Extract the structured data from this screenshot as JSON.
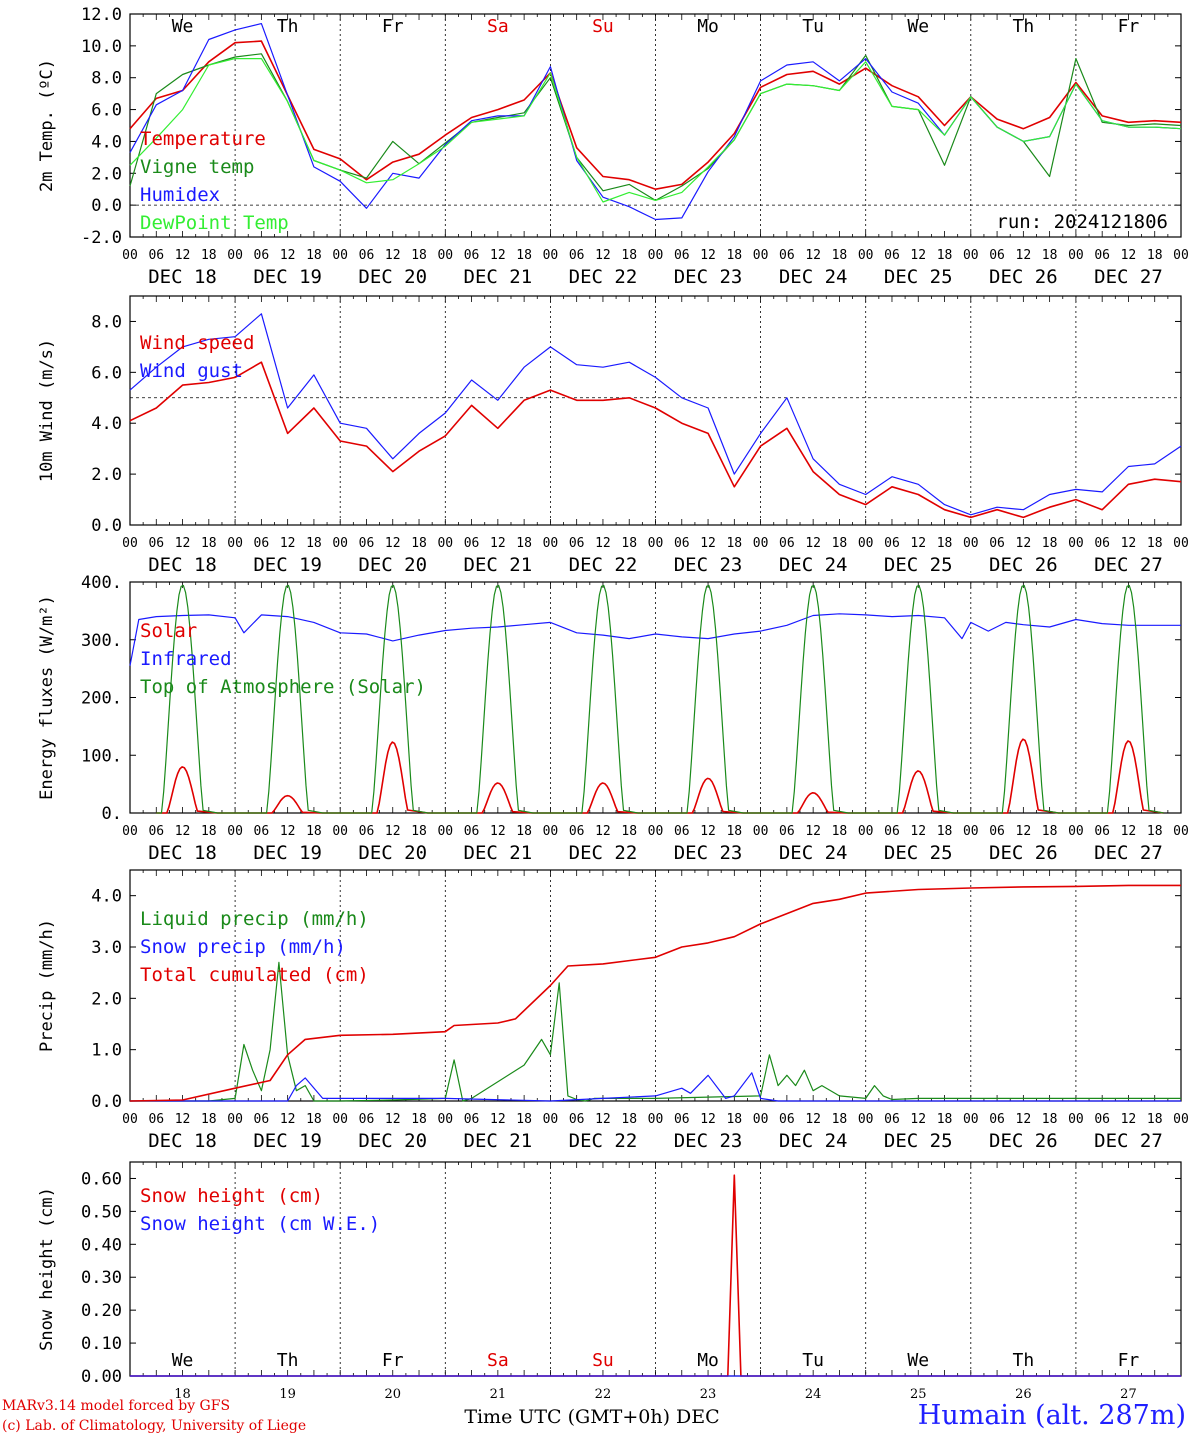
{
  "run_label": "run: 2024121806",
  "footer": {
    "model": "MARv3.14 model forced by GFS",
    "credit": "(c) Lab. of Climatology, University of Liege",
    "station": "Humain (alt. 287m)",
    "xlabel": "Time UTC (GMT+0h) DEC"
  },
  "colors": {
    "red": "#e00000",
    "green": "#1a8a1a",
    "blue": "#1a1aff",
    "lightgreen": "#33ee33",
    "weekend": "#e00000"
  },
  "x_axis": {
    "days": [
      "DEC 18",
      "DEC 19",
      "DEC 20",
      "DEC 21",
      "DEC 22",
      "DEC 23",
      "DEC 24",
      "DEC 25",
      "DEC 26",
      "DEC 27"
    ],
    "day_numbers": [
      "18",
      "19",
      "20",
      "21",
      "22",
      "23",
      "24",
      "25",
      "26",
      "27"
    ],
    "weekdays": [
      "We",
      "Th",
      "Fr",
      "Sa",
      "Su",
      "Mo",
      "Tu",
      "We",
      "Th",
      "Fr"
    ],
    "weekend_flags": [
      false,
      false,
      false,
      true,
      true,
      false,
      false,
      false,
      false,
      false
    ],
    "hour_ticks": [
      "00",
      "06",
      "12",
      "18"
    ],
    "range_hours": [
      0,
      240
    ]
  },
  "chart_data": [
    {
      "type": "line",
      "id": "temp",
      "ylabel": "2m Temp. (ºC)",
      "ylim": [
        -2,
        12
      ],
      "yticks": [
        "-2.0",
        "0.0",
        "2.0",
        "4.0",
        "6.0",
        "8.0",
        "10.0",
        "12.0"
      ],
      "ref_line": 0,
      "series": [
        {
          "name": "Temperature",
          "color": "red",
          "x": [
            0,
            6,
            12,
            18,
            24,
            30,
            36,
            42,
            48,
            54,
            60,
            66,
            72,
            78,
            84,
            90,
            96,
            102,
            108,
            114,
            120,
            126,
            132,
            138,
            144,
            150,
            156,
            162,
            168,
            174,
            180,
            186,
            192,
            198,
            204,
            210,
            216,
            222,
            228,
            234,
            240
          ],
          "y": [
            4.8,
            6.7,
            7.2,
            9.0,
            10.2,
            10.3,
            6.9,
            3.5,
            2.9,
            1.6,
            2.7,
            3.2,
            4.4,
            5.5,
            6.0,
            6.6,
            8.3,
            3.6,
            1.8,
            1.6,
            1.0,
            1.3,
            2.7,
            4.5,
            7.4,
            8.2,
            8.4,
            7.6,
            8.6,
            7.5,
            6.8,
            5.0,
            6.8,
            5.4,
            4.8,
            5.5,
            7.7,
            5.6,
            5.2,
            5.3,
            5.2
          ]
        },
        {
          "name": "Vigne temp",
          "color": "green",
          "x": [
            0,
            6,
            12,
            18,
            24,
            30,
            36,
            42,
            48,
            54,
            60,
            66,
            72,
            78,
            84,
            90,
            96,
            102,
            108,
            114,
            120,
            126,
            132,
            138,
            144,
            150,
            156,
            162,
            168,
            174,
            180,
            186,
            192,
            198,
            204,
            210,
            216,
            222,
            228,
            234,
            240
          ],
          "y": [
            1.2,
            7.0,
            8.2,
            8.8,
            9.3,
            9.5,
            6.5,
            2.8,
            2.2,
            1.7,
            4.0,
            2.6,
            3.9,
            5.2,
            5.5,
            5.8,
            8.0,
            3.0,
            0.9,
            1.3,
            0.3,
            1.2,
            2.3,
            4.1,
            7.0,
            7.6,
            7.5,
            7.2,
            9.4,
            6.2,
            6.0,
            2.5,
            6.8,
            4.9,
            4.0,
            1.8,
            9.2,
            5.2,
            5.0,
            5.1,
            5.0
          ]
        },
        {
          "name": "Humidex",
          "color": "blue",
          "x": [
            0,
            6,
            12,
            18,
            24,
            30,
            36,
            42,
            48,
            54,
            60,
            66,
            72,
            78,
            84,
            90,
            96,
            102,
            108,
            114,
            120,
            126,
            132,
            138,
            144,
            150,
            156,
            162,
            168,
            174,
            180,
            186,
            192,
            198,
            204,
            210,
            216,
            222,
            228,
            234,
            240
          ],
          "y": [
            3.3,
            6.3,
            7.2,
            10.4,
            11.0,
            11.4,
            6.9,
            2.4,
            1.5,
            -0.2,
            2.0,
            1.7,
            3.8,
            5.3,
            5.6,
            5.6,
            8.7,
            2.8,
            0.5,
            -0.1,
            -0.9,
            -0.8,
            2.1,
            4.3,
            7.8,
            8.8,
            9.0,
            7.8,
            9.2,
            7.1,
            6.4,
            4.4,
            6.8,
            4.9,
            4.0,
            4.3,
            7.6,
            5.3,
            4.9,
            4.9,
            4.8
          ]
        },
        {
          "name": "DewPoint Temp",
          "color": "lightgreen",
          "x": [
            0,
            6,
            12,
            18,
            24,
            30,
            36,
            42,
            48,
            54,
            60,
            66,
            72,
            78,
            84,
            90,
            96,
            102,
            108,
            114,
            120,
            126,
            132,
            138,
            144,
            150,
            156,
            162,
            168,
            174,
            180,
            186,
            192,
            198,
            204,
            210,
            216,
            222,
            228,
            234,
            240
          ],
          "y": [
            2.5,
            4.2,
            6.0,
            8.8,
            9.2,
            9.2,
            6.5,
            2.8,
            2.2,
            1.4,
            1.6,
            2.6,
            3.7,
            5.2,
            5.4,
            5.6,
            8.3,
            3.0,
            0.2,
            0.8,
            0.3,
            0.8,
            2.4,
            4.1,
            7.0,
            7.6,
            7.5,
            7.2,
            9.0,
            6.2,
            6.0,
            4.4,
            6.8,
            4.9,
            4.0,
            4.3,
            7.6,
            5.3,
            4.9,
            4.9,
            4.8
          ]
        }
      ]
    },
    {
      "type": "line",
      "id": "wind",
      "ylabel": "10m Wind (m/s)",
      "ylim": [
        0,
        9
      ],
      "yticks": [
        "0.0",
        "2.0",
        "4.0",
        "6.0",
        "8.0"
      ],
      "ref_line": 5,
      "series": [
        {
          "name": "Wind speed",
          "color": "red",
          "x": [
            0,
            6,
            12,
            18,
            24,
            30,
            36,
            42,
            48,
            54,
            60,
            66,
            72,
            78,
            84,
            90,
            96,
            102,
            108,
            114,
            120,
            126,
            132,
            138,
            144,
            150,
            156,
            162,
            168,
            174,
            180,
            186,
            192,
            198,
            204,
            210,
            216,
            222,
            228,
            234,
            240
          ],
          "y": [
            4.1,
            4.6,
            5.5,
            5.6,
            5.8,
            6.4,
            3.6,
            4.6,
            3.3,
            3.1,
            2.1,
            2.9,
            3.5,
            4.7,
            3.8,
            4.9,
            5.3,
            4.9,
            4.9,
            5.0,
            4.6,
            4.0,
            3.6,
            1.5,
            3.1,
            3.8,
            2.1,
            1.2,
            0.8,
            1.5,
            1.2,
            0.6,
            0.3,
            0.6,
            0.3,
            0.7,
            1.0,
            0.6,
            1.6,
            1.8,
            1.7
          ]
        },
        {
          "name": "Wind gust",
          "color": "blue",
          "x": [
            0,
            6,
            12,
            18,
            24,
            30,
            36,
            42,
            48,
            54,
            60,
            66,
            72,
            78,
            84,
            90,
            96,
            102,
            108,
            114,
            120,
            126,
            132,
            138,
            144,
            150,
            156,
            162,
            168,
            174,
            180,
            186,
            192,
            198,
            204,
            210,
            216,
            222,
            228,
            234,
            240
          ],
          "y": [
            5.3,
            6.2,
            7.0,
            7.3,
            7.4,
            8.3,
            4.6,
            5.9,
            4.0,
            3.8,
            2.6,
            3.6,
            4.4,
            5.7,
            4.9,
            6.2,
            7.0,
            6.3,
            6.2,
            6.4,
            5.8,
            5.0,
            4.6,
            2.0,
            3.6,
            5.0,
            2.6,
            1.6,
            1.2,
            1.9,
            1.6,
            0.8,
            0.4,
            0.7,
            0.6,
            1.2,
            1.4,
            1.3,
            2.3,
            2.4,
            3.1
          ]
        }
      ]
    },
    {
      "type": "line",
      "id": "energy",
      "ylabel": "Energy fluxes (W/m²)",
      "ylim": [
        0,
        400
      ],
      "yticks": [
        "0.",
        "100.",
        "200.",
        "300.",
        "400."
      ],
      "series": [
        {
          "name": "Solar",
          "color": "red",
          "peaks": [
            80,
            30,
            123,
            52,
            52,
            60,
            35,
            73,
            128,
            125
          ]
        },
        {
          "name": "Infrared",
          "color": "blue",
          "x": [
            0,
            2,
            6,
            12,
            18,
            24,
            26,
            30,
            36,
            42,
            48,
            54,
            60,
            66,
            72,
            78,
            84,
            90,
            96,
            102,
            108,
            114,
            120,
            126,
            132,
            138,
            144,
            150,
            156,
            162,
            168,
            174,
            180,
            186,
            190,
            192,
            196,
            200,
            204,
            210,
            216,
            222,
            228,
            234,
            240
          ],
          "y": [
            255,
            335,
            340,
            342,
            343,
            338,
            312,
            343,
            340,
            330,
            312,
            310,
            298,
            308,
            316,
            320,
            322,
            326,
            330,
            312,
            308,
            302,
            310,
            305,
            302,
            310,
            315,
            325,
            342,
            345,
            343,
            340,
            342,
            338,
            302,
            330,
            315,
            330,
            326,
            322,
            335,
            328,
            325,
            325,
            325
          ]
        },
        {
          "name": "Top of Atmosphere (Solar)",
          "color": "green",
          "peak": 395
        }
      ]
    },
    {
      "type": "line",
      "id": "precip",
      "ylabel": "Precip (mm/h)",
      "ylim": [
        0,
        4.5
      ],
      "yticks": [
        "0.0",
        "1.0",
        "2.0",
        "3.0",
        "4.0"
      ],
      "series": [
        {
          "name": "Liquid precip (mm/h)",
          "color": "green",
          "x": [
            0,
            18,
            24,
            26,
            28,
            30,
            32,
            34,
            36,
            38,
            40,
            42,
            48,
            60,
            72,
            74,
            76,
            78,
            90,
            94,
            96,
            98,
            100,
            102,
            104,
            106,
            120,
            144,
            146,
            148,
            150,
            152,
            154,
            156,
            158,
            162,
            168,
            170,
            172,
            174,
            180,
            240
          ],
          "y": [
            0,
            0,
            0.05,
            1.1,
            0.6,
            0.2,
            1.0,
            2.7,
            0.9,
            0.2,
            0.3,
            0,
            0,
            0.02,
            0.05,
            0.8,
            0.0,
            0.05,
            0.7,
            1.2,
            0.9,
            2.3,
            0.1,
            0.03,
            0,
            0.05,
            0.05,
            0.1,
            0.9,
            0.3,
            0.5,
            0.3,
            0.6,
            0.2,
            0.3,
            0.1,
            0.05,
            0.3,
            0.1,
            0.03,
            0.05,
            0.05
          ]
        },
        {
          "name": "Snow precip (mm/h)",
          "color": "blue",
          "x": [
            0,
            36,
            38,
            40,
            44,
            60,
            72,
            96,
            108,
            120,
            126,
            128,
            132,
            136,
            138,
            142,
            144,
            148,
            240
          ],
          "y": [
            0,
            0,
            0.3,
            0.45,
            0.05,
            0.05,
            0.05,
            0,
            0.05,
            0.1,
            0.25,
            0.15,
            0.5,
            0.05,
            0.1,
            0.55,
            0.05,
            0,
            0
          ]
        },
        {
          "name": "Total cumulated (cm)",
          "color": "red",
          "x": [
            0,
            12,
            24,
            32,
            36,
            40,
            48,
            60,
            72,
            74,
            84,
            88,
            96,
            100,
            108,
            120,
            126,
            132,
            138,
            144,
            150,
            156,
            162,
            168,
            180,
            192,
            204,
            216,
            228,
            240
          ],
          "y": [
            0,
            0.02,
            0.25,
            0.4,
            0.9,
            1.2,
            1.28,
            1.3,
            1.35,
            1.47,
            1.52,
            1.6,
            2.25,
            2.63,
            2.67,
            2.8,
            3.0,
            3.08,
            3.2,
            3.45,
            3.65,
            3.85,
            3.93,
            4.05,
            4.12,
            4.15,
            4.17,
            4.18,
            4.2,
            4.2
          ]
        }
      ]
    },
    {
      "type": "line",
      "id": "snow",
      "ylabel": "Snow height (cm)",
      "ylim": [
        0,
        0.65
      ],
      "yticks": [
        "0.00",
        "0.10",
        "0.20",
        "0.30",
        "0.40",
        "0.50",
        "0.60"
      ],
      "series": [
        {
          "name": "Snow height (cm)",
          "color": "red",
          "x": [
            0,
            136.5,
            138,
            139.5,
            240
          ],
          "y": [
            0,
            0,
            0.61,
            0,
            0
          ]
        },
        {
          "name": "Snow height (cm W.E.)",
          "color": "blue",
          "x": [
            0,
            240
          ],
          "y": [
            0,
            0
          ]
        }
      ]
    }
  ]
}
